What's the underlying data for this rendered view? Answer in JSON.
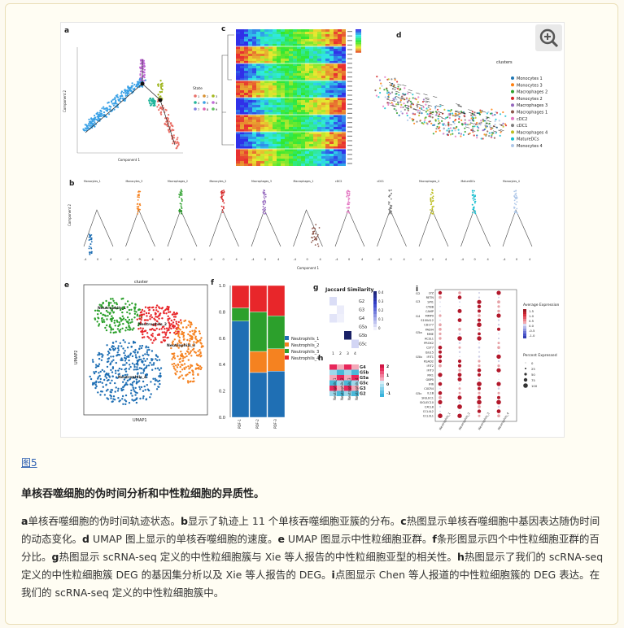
{
  "figure": {
    "panel_labels": [
      "a",
      "b",
      "c",
      "d",
      "e",
      "f",
      "g",
      "h",
      "i"
    ],
    "panel_a": {
      "legend_title": "State",
      "states": [
        "1",
        "2",
        "3",
        "4",
        "5",
        "6",
        "7",
        "8",
        "9"
      ],
      "xlabel": "Component 1",
      "ylabel": "Component 2"
    },
    "panel_b": {
      "subplots": [
        "Monocytes_1",
        "Monocytes_3",
        "Macrophages_2",
        "Monocytes_2",
        "Macrophages_3",
        "Macrophages_1",
        "cDC2",
        "cDC1",
        "Macrophages_4",
        "MatureDCs",
        "Monocytes_4"
      ],
      "xlabel": "Component 1",
      "ylabel": "Component 2"
    },
    "panel_d": {
      "title": "clusters",
      "legend": [
        {
          "name": "Monocytes 1",
          "color": "#1f77b4"
        },
        {
          "name": "Monocytes 3",
          "color": "#ff7f0e"
        },
        {
          "name": "Macrophages 2",
          "color": "#2ca02c"
        },
        {
          "name": "Monocytes 2",
          "color": "#d62728"
        },
        {
          "name": "Macrophages 3",
          "color": "#9467bd"
        },
        {
          "name": "Macrophages 1",
          "color": "#8c564b"
        },
        {
          "name": "cDC2",
          "color": "#e377c2"
        },
        {
          "name": "cDC1",
          "color": "#7f7f7f"
        },
        {
          "name": "Macrophages 4",
          "color": "#bcbd22"
        },
        {
          "name": "MatureDCs",
          "color": "#17becf"
        },
        {
          "name": "Monocytes 4",
          "color": "#aec7e8"
        }
      ]
    },
    "panel_e": {
      "title": "cluster",
      "xlabel": "UMAP1",
      "ylabel": "UMAP2",
      "cluster_labels": [
        "Neutrophils_1",
        "Neutrophils_2",
        "Neutrophils_3",
        "Neutrophils_4"
      ]
    },
    "panel_f": {
      "chart_data": {
        "type": "bar",
        "categories": [
          "PDF-1",
          "PDF-2",
          "PDF-3"
        ],
        "series": [
          {
            "name": "Neutrophils_1",
            "color": "#1f6fb4",
            "values": [
              0.73,
              0.34,
              0.35
            ]
          },
          {
            "name": "Neutrophils_2",
            "color": "#f58220",
            "values": [
              0.0,
              0.16,
              0.17
            ]
          },
          {
            "name": "Neutrophils_3",
            "color": "#2ca02c",
            "values": [
              0.1,
              0.3,
              0.25
            ]
          },
          {
            "name": "Neutrophils_4",
            "color": "#e8262a",
            "values": [
              0.17,
              0.2,
              0.23
            ]
          }
        ],
        "yticks": [
          "0.0",
          "0.2",
          "0.4",
          "0.6",
          "0.8",
          "1.0"
        ],
        "ylim": [
          0,
          1
        ]
      }
    },
    "panel_g": {
      "title": "Jaccard Similarity",
      "rows": [
        "G2",
        "G3",
        "G4",
        "G5a",
        "G5b",
        "G5c"
      ],
      "cols": [
        "1",
        "2",
        "3",
        "4"
      ],
      "scale": [
        "0.4",
        "0.3",
        "0.2",
        "0.1",
        "0"
      ]
    },
    "panel_h": {
      "rows": [
        "G4",
        "G5b",
        "G5a",
        "G5c",
        "G3",
        "G2"
      ],
      "cols": [
        "Neutrophils_1",
        "Neutrophils_2",
        "Neutrophils_3",
        "Neutrophils_4"
      ],
      "scale": [
        "2",
        "1",
        "0",
        "-1"
      ]
    },
    "panel_i": {
      "genes": [
        "LYZ",
        "RETN",
        "SPI1",
        "CYBB",
        "CAMP",
        "MMP9",
        "S100A12",
        "CD177",
        "PADI4",
        "MME",
        "ACSL1",
        "PROK2",
        "CST7",
        "ISG15",
        "IFIT1",
        "RSAD2",
        "IFIT2",
        "IFIT3",
        "MX1",
        "GBP5",
        "IFI6",
        "CXCR4",
        "IL1B",
        "SIGLEC1",
        "SIGLEC10",
        "CXCL8",
        "CCL4L2",
        "CCL3L1"
      ],
      "groups": [
        "G2",
        "G3",
        "G4",
        "G5a",
        "G5b",
        "G5c"
      ],
      "cols": [
        "Neutrophils_1",
        "Neutrophils_2",
        "Neutrophils_3",
        "Neutrophils_4"
      ],
      "legend_avg": "Average Expression",
      "avg_ticks": [
        "1.5",
        "1.0",
        "0.5",
        "0.0",
        "-0.5",
        "-1.0"
      ],
      "legend_pct": "Percent Expressed",
      "pct_ticks": [
        "0",
        "25",
        "50",
        "75",
        "100"
      ]
    }
  },
  "caption": {
    "link": "图5",
    "title": "单核吞噬细胞的伪时间分析和中性粒细胞的异质性。",
    "body_parts": [
      {
        "bold": "a",
        "text": "单核吞噬细胞的伪时间轨迹状态。"
      },
      {
        "bold": "b",
        "text": "显示了轨迹上 11 个单核吞噬细胞亚簇的分布。"
      },
      {
        "bold": "c",
        "text": "热图显示单核吞噬细胞中基因表达随伪时间的动态变化。"
      },
      {
        "bold": "d",
        "text": " UMAP 图上显示的单核吞噬细胞的速度。"
      },
      {
        "bold": "e",
        "text": " UMAP 图显示中性粒细胞亚群。"
      },
      {
        "bold": "f",
        "text": "条形图显示四个中性粒细胞亚群的百分比。"
      },
      {
        "bold": "g",
        "text": "热图显示 scRNA-seq 定义的中性粒细胞簇与 Xie 等人报告的中性粒细胞亚型的相关性。"
      },
      {
        "bold": "h",
        "text": "热图显示了我们的 scRNA-seq 定义的中性粒细胞簇 DEG 的基因集分析以及 Xie 等人报告的 DEG。"
      },
      {
        "bold": "i",
        "text": "点图显示 Chen 等人报道的中性粒细胞簇的 DEG 表达。在我们的 scRNA-seq 定义的中性粒细胞簇中。"
      }
    ]
  }
}
